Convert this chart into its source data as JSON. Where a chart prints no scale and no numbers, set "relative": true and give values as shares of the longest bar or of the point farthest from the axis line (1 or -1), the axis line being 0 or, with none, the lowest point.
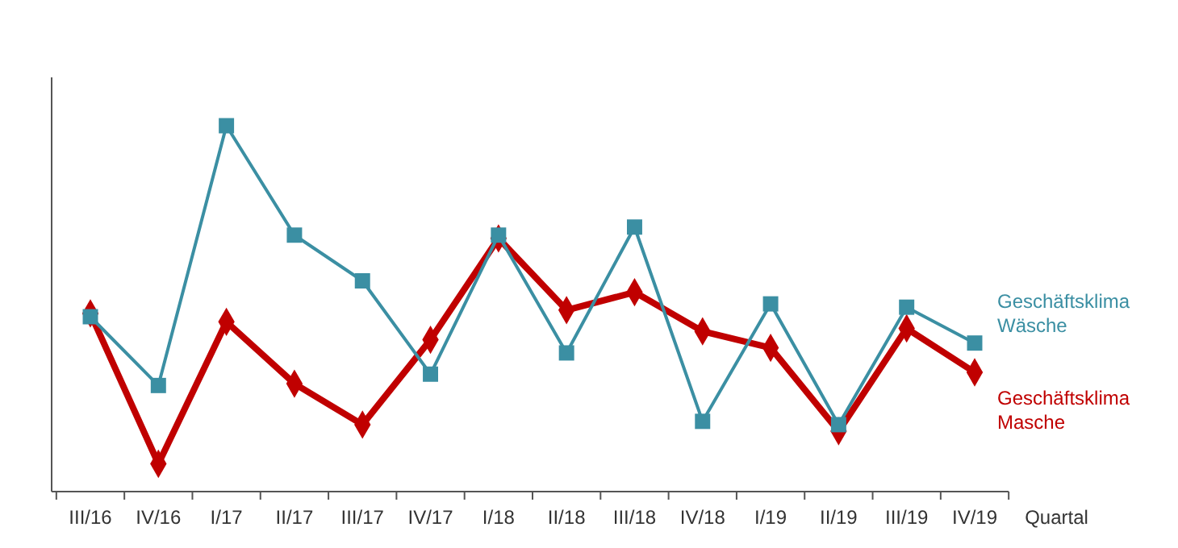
{
  "chart_data": {
    "type": "line",
    "relative": true,
    "xlabel": "Quartal",
    "categories": [
      "III/16",
      "IV/16",
      "I/17",
      "II/17",
      "III/17",
      "IV/17",
      "I/18",
      "II/18",
      "III/18",
      "IV/18",
      "I/19",
      "II/19",
      "III/19",
      "IV/19"
    ],
    "legend": "right",
    "series": [
      {
        "name": "Geschäftsklima Wäsche",
        "color": "#3b8fa3",
        "marker": "square",
        "values": [
          0.478,
          0.29,
          1.0,
          0.701,
          0.576,
          0.321,
          0.701,
          0.379,
          0.723,
          0.192,
          0.513,
          0.183,
          0.504,
          0.406
        ]
      },
      {
        "name": "Geschäftsklima Masche",
        "color": "#c00000",
        "marker": "diamond",
        "values": [
          0.487,
          0.076,
          0.464,
          0.295,
          0.183,
          0.415,
          0.692,
          0.496,
          0.545,
          0.438,
          0.393,
          0.165,
          0.446,
          0.326
        ]
      }
    ]
  }
}
